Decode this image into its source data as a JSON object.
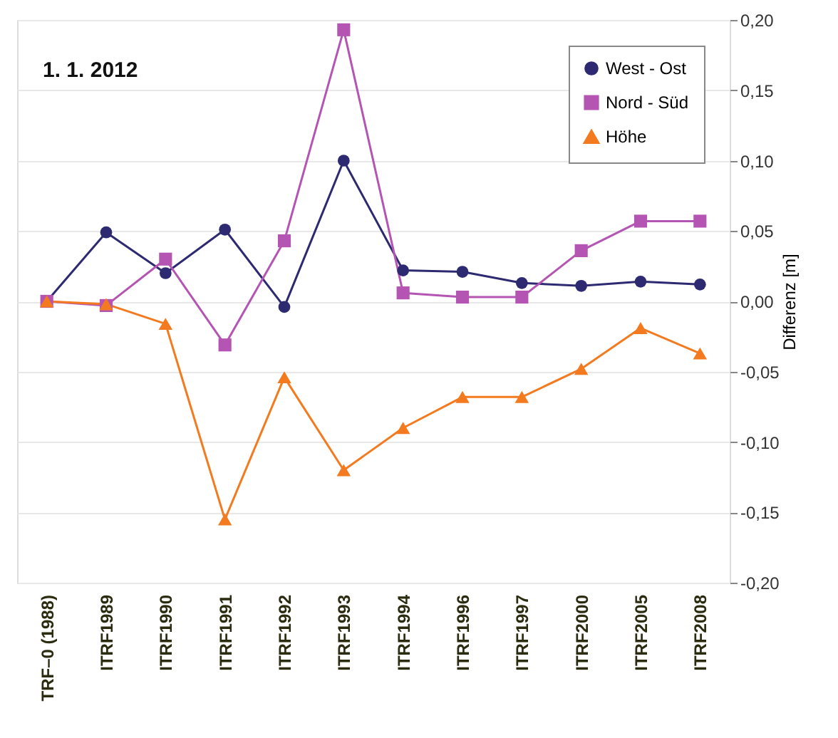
{
  "chart_data": {
    "type": "line",
    "annotations": [
      "1. 1. 2012"
    ],
    "ylabel": "Differenz [m]",
    "categories": [
      "TRF–0 (1988)",
      "ITRF1989",
      "ITRF1990",
      "ITRF1991",
      "ITRF1992",
      "ITRF1993",
      "ITRF1994",
      "ITRF1996",
      "ITRF1997",
      "ITRF2000",
      "ITRF2005",
      "ITRF2008"
    ],
    "series": [
      {
        "name": "West - Ost",
        "color": "#2e2a72",
        "marker": "circle",
        "values": [
          0.0,
          0.049,
          0.02,
          0.051,
          -0.004,
          0.1,
          0.022,
          0.021,
          0.013,
          0.011,
          0.014,
          0.012
        ]
      },
      {
        "name": "Nord - Süd",
        "color": "#b455b4",
        "marker": "square",
        "values": [
          0.0,
          -0.003,
          0.03,
          -0.031,
          0.043,
          0.193,
          0.006,
          0.003,
          0.003,
          0.036,
          0.057,
          0.057
        ]
      },
      {
        "name": "Höhe",
        "color": "#f47a20",
        "marker": "triangle",
        "values": [
          0.0,
          -0.002,
          -0.016,
          -0.155,
          -0.054,
          -0.12,
          -0.09,
          -0.068,
          -0.068,
          -0.048,
          -0.019,
          -0.037
        ]
      }
    ],
    "ylim": [
      -0.2,
      0.2
    ],
    "yticks": [
      {
        "value": -0.2,
        "label": "-0,20"
      },
      {
        "value": -0.15,
        "label": "-0,15"
      },
      {
        "value": -0.1,
        "label": "-0,10"
      },
      {
        "value": -0.05,
        "label": "-0,05"
      },
      {
        "value": 0,
        "label": "0,00"
      },
      {
        "value": 0.05,
        "label": "0,05"
      },
      {
        "value": 0.1,
        "label": "0,10"
      },
      {
        "value": 0.15,
        "label": "0,15"
      },
      {
        "value": 0.2,
        "label": "0,20"
      }
    ],
    "grid": "y",
    "legend": "top right"
  }
}
